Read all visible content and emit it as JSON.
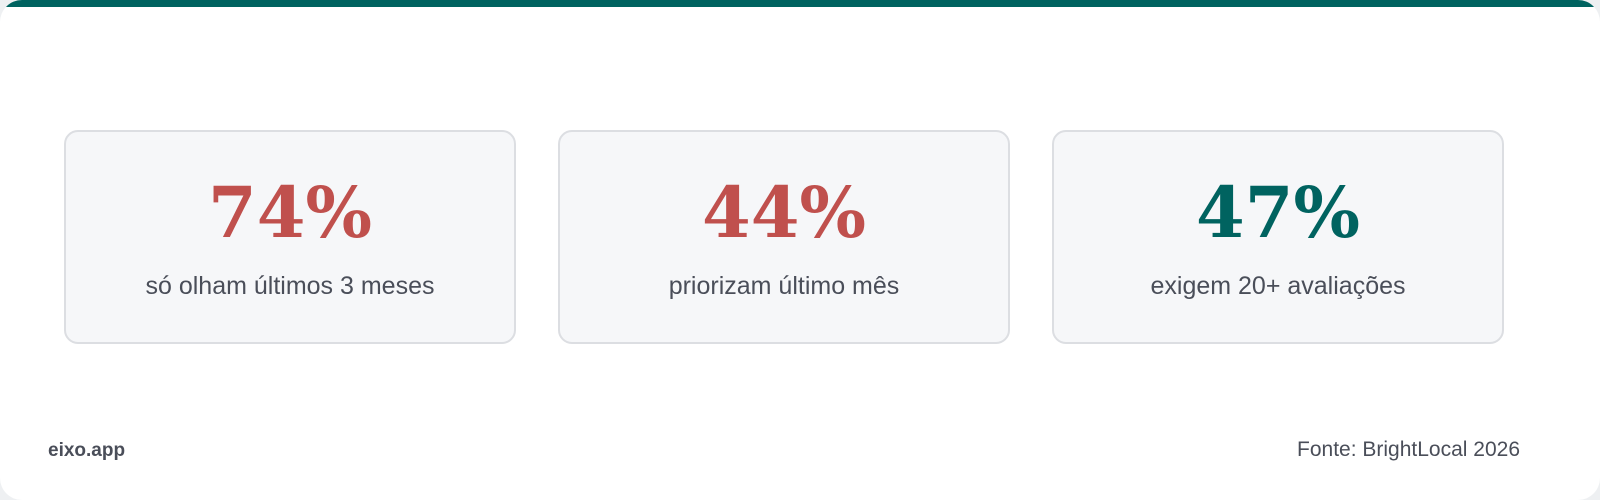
{
  "colors": {
    "accent": "#006360",
    "negative": "#c0504d",
    "text": "#4a4e59"
  },
  "stats": [
    {
      "value": "74%",
      "label": "só olham últimos 3 meses",
      "color": "#c0504d"
    },
    {
      "value": "44%",
      "label": "priorizam último mês",
      "color": "#c0504d"
    },
    {
      "value": "47%",
      "label": "exigem 20+ avaliações",
      "color": "#006360"
    }
  ],
  "footer": {
    "brand": "eixo.app",
    "source": "Fonte: BrightLocal 2026"
  }
}
